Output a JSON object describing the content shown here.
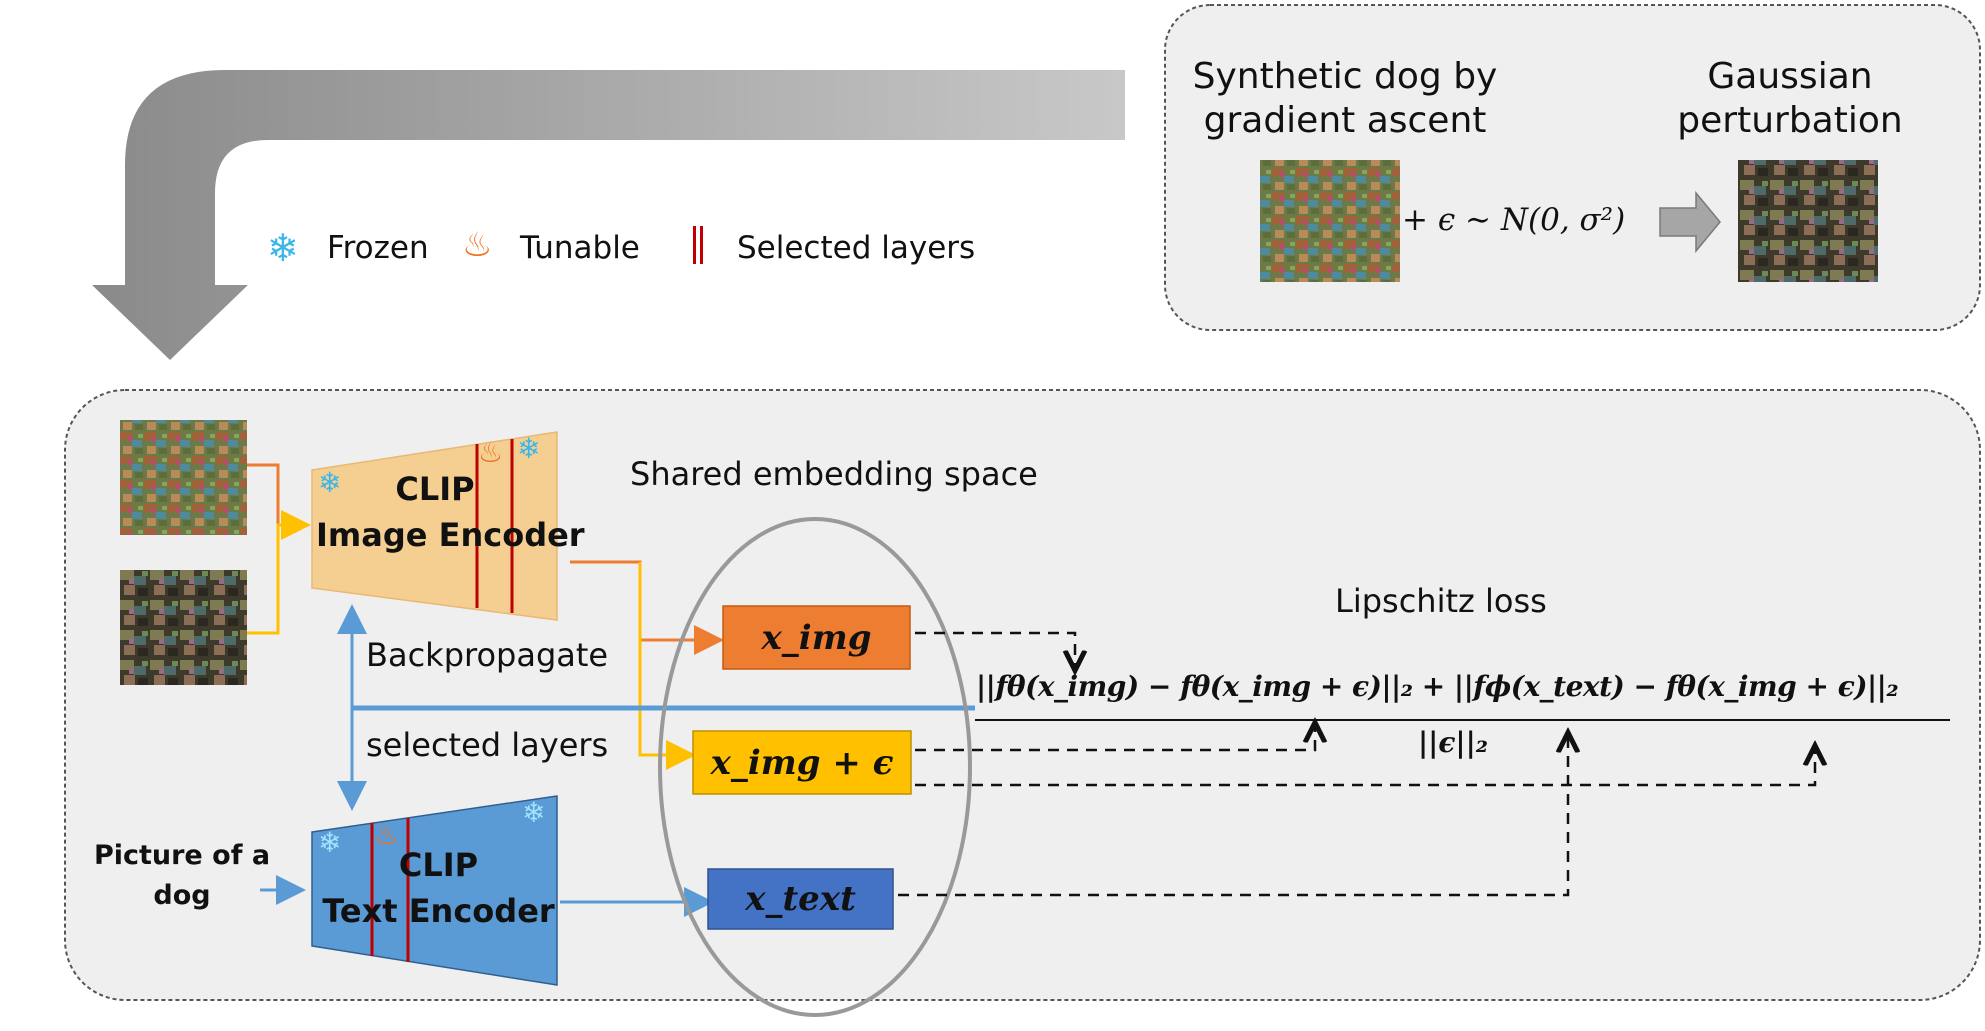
{
  "top_box": {
    "left_title_line1": "Synthetic dog by",
    "left_title_line2": "gradient ascent",
    "right_title_line1": "Gaussian",
    "right_title_line2": "perturbation",
    "formula": "+ ϵ ∼ N(0, σ²)"
  },
  "legend": {
    "frozen": "Frozen",
    "tunable": "Tunable",
    "selected": "Selected layers"
  },
  "main": {
    "shared_space": "Shared embedding space",
    "image_encoder_line1": "CLIP",
    "image_encoder_line2": "Image Encoder",
    "text_encoder_line1": "CLIP",
    "text_encoder_line2": "Text Encoder",
    "backprop_line1": "Backpropagate",
    "backprop_line2": "selected layers",
    "text_input_line1": "Picture of a",
    "text_input_line2": "dog",
    "x_img": "x_img",
    "x_img_eps": "x_img + ϵ",
    "x_text": "x_text",
    "loss_title": "Lipschitz loss",
    "loss_numerator": "||fθ(x_img) − fθ(x_img + ϵ)||₂ + ||fϕ(x_text) − fθ(x_img + ϵ)||₂",
    "loss_denominator": "||ϵ||₂"
  },
  "colors": {
    "orange": "#ed7d31",
    "yellow": "#ffc000",
    "blue": "#4472c4",
    "light_blue": "#5b9bd5",
    "encoder_img": "#f4cf91",
    "encoder_text": "#5b9bd5",
    "layer_red": "#c00000",
    "panel_bg": "#efefef"
  }
}
